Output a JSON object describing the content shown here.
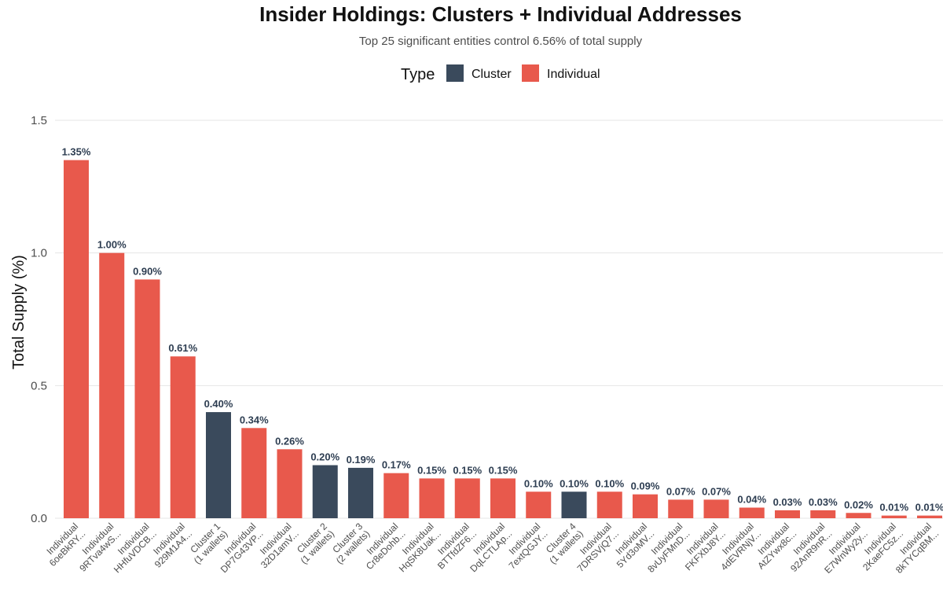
{
  "chart_data": {
    "type": "bar",
    "title": "Insider Holdings: Clusters + Individual Addresses",
    "subtitle": "Top 25 significant entities control 6.56% of total supply",
    "xlabel": "",
    "ylabel": "Total Supply (%)",
    "ylim": [
      0,
      1.6
    ],
    "yticks": [
      "0.0",
      "0.5",
      "1.0",
      "1.5"
    ],
    "ytick_values": [
      0,
      0.5,
      1.0,
      1.5
    ],
    "grid": true,
    "legend": {
      "title": "Type",
      "position": "top",
      "entries": [
        {
          "name": "Cluster",
          "color": "#3a4a5c"
        },
        {
          "name": "Individual",
          "color": "#e8594c"
        }
      ]
    },
    "categories": [
      {
        "line1": "Individual",
        "line2": "6oeBkRY...",
        "type": "Individual",
        "value": 1.35,
        "label": "1.35%"
      },
      {
        "line1": "Individual",
        "line2": "9RTva4wS...",
        "type": "Individual",
        "value": 1.0,
        "label": "1.00%"
      },
      {
        "line1": "Individual",
        "line2": "HHfuVDCB...",
        "type": "Individual",
        "value": 0.9,
        "label": "0.90%"
      },
      {
        "line1": "Individual",
        "line2": "929M1A4...",
        "type": "Individual",
        "value": 0.61,
        "label": "0.61%"
      },
      {
        "line1": "Cluster 1",
        "line2": "(1 wallets)",
        "type": "Cluster",
        "value": 0.4,
        "label": "0.40%"
      },
      {
        "line1": "Individual",
        "line2": "DP7G43VP...",
        "type": "Individual",
        "value": 0.34,
        "label": "0.34%"
      },
      {
        "line1": "Individual",
        "line2": "32D1amV...",
        "type": "Individual",
        "value": 0.26,
        "label": "0.26%"
      },
      {
        "line1": "Cluster 2",
        "line2": "(1 wallets)",
        "type": "Cluster",
        "value": 0.2,
        "label": "0.20%"
      },
      {
        "line1": "Cluster 3",
        "line2": "(2 wallets)",
        "type": "Cluster",
        "value": 0.19,
        "label": "0.19%"
      },
      {
        "line1": "Individual",
        "line2": "Cr8eDohb...",
        "type": "Individual",
        "value": 0.17,
        "label": "0.17%"
      },
      {
        "line1": "Individual",
        "line2": "HqSK8Uak...",
        "type": "Individual",
        "value": 0.15,
        "label": "0.15%"
      },
      {
        "line1": "Individual",
        "line2": "BTTfdZF6...",
        "type": "Individual",
        "value": 0.15,
        "label": "0.15%"
      },
      {
        "line1": "Individual",
        "line2": "DqLCTLAp...",
        "type": "Individual",
        "value": 0.15,
        "label": "0.15%"
      },
      {
        "line1": "Individual",
        "line2": "7extQGJY...",
        "type": "Individual",
        "value": 0.1,
        "label": "0.10%"
      },
      {
        "line1": "Cluster 4",
        "line2": "(1 wallets)",
        "type": "Cluster",
        "value": 0.1,
        "label": "0.10%"
      },
      {
        "line1": "Individual",
        "line2": "7DRSVjQ7...",
        "type": "Individual",
        "value": 0.1,
        "label": "0.10%"
      },
      {
        "line1": "Individual",
        "line2": "5Yd3oMV...",
        "type": "Individual",
        "value": 0.09,
        "label": "0.09%"
      },
      {
        "line1": "Individual",
        "line2": "8vUyFMnD...",
        "type": "Individual",
        "value": 0.07,
        "label": "0.07%"
      },
      {
        "line1": "Individual",
        "line2": "FKFXbJ8Y...",
        "type": "Individual",
        "value": 0.07,
        "label": "0.07%"
      },
      {
        "line1": "Individual",
        "line2": "4dEVRNjV...",
        "type": "Individual",
        "value": 0.04,
        "label": "0.04%"
      },
      {
        "line1": "Individual",
        "line2": "AtZYwx8c...",
        "type": "Individual",
        "value": 0.03,
        "label": "0.03%"
      },
      {
        "line1": "Individual",
        "line2": "92AnR9nR...",
        "type": "Individual",
        "value": 0.03,
        "label": "0.03%"
      },
      {
        "line1": "Individual",
        "line2": "E7WnWy2y...",
        "type": "Individual",
        "value": 0.02,
        "label": "0.02%"
      },
      {
        "line1": "Individual",
        "line2": "2KaeFC5z...",
        "type": "Individual",
        "value": 0.01,
        "label": "0.01%"
      },
      {
        "line1": "Individual",
        "line2": "8kTYCqBM...",
        "type": "Individual",
        "value": 0.01,
        "label": "0.01%"
      }
    ]
  }
}
